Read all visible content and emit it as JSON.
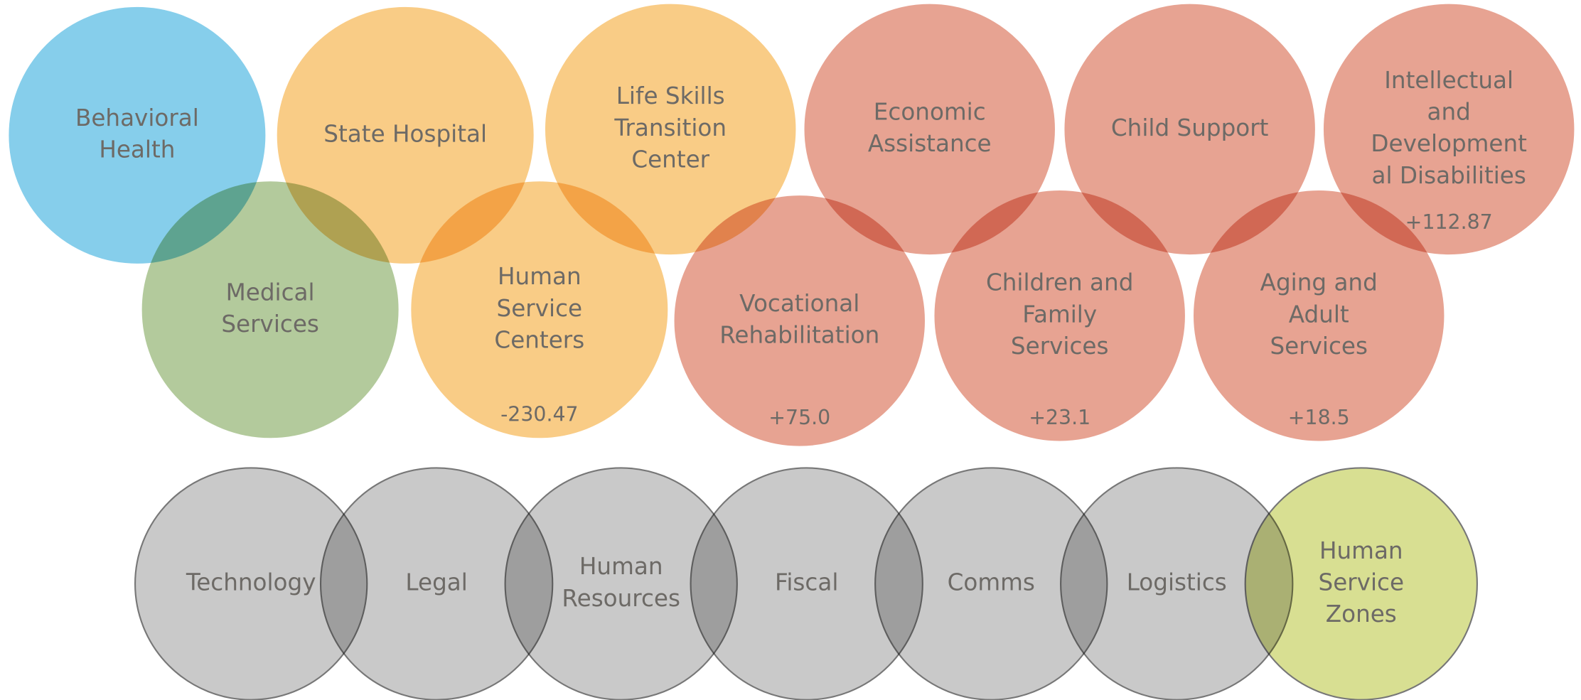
{
  "nodes": [
    {
      "label": [
        "Behavioral",
        "Health"
      ]
    },
    {
      "label": [
        "State Hospital"
      ]
    },
    {
      "label": [
        "Life Skills",
        "Transition",
        "Center"
      ]
    },
    {
      "label": [
        "Economic",
        "Assistance"
      ]
    },
    {
      "label": [
        "Child Support"
      ]
    },
    {
      "label": [
        "Intellectual",
        "and",
        "Development",
        "al Disabilities"
      ],
      "value": "+112.87"
    },
    {
      "label": [
        "Medical",
        "Services"
      ]
    },
    {
      "label": [
        "Human",
        "Service",
        "Centers"
      ],
      "value": "-230.47"
    },
    {
      "label": [
        "Vocational",
        "Rehabilitation"
      ],
      "value": "+75.0"
    },
    {
      "label": [
        "Children and",
        "Family",
        "Services"
      ],
      "value": "+23.1"
    },
    {
      "label": [
        "Aging and",
        "Adult",
        "Services"
      ],
      "value": "+18.5"
    },
    {
      "label": [
        "Technology"
      ]
    },
    {
      "label": [
        "Legal"
      ]
    },
    {
      "label": [
        "Human",
        "Resources"
      ]
    },
    {
      "label": [
        "Fiscal"
      ]
    },
    {
      "label": [
        "Comms"
      ]
    },
    {
      "label": [
        "Logistics"
      ]
    },
    {
      "label": [
        "Human",
        "Service",
        "Zones"
      ]
    }
  ]
}
